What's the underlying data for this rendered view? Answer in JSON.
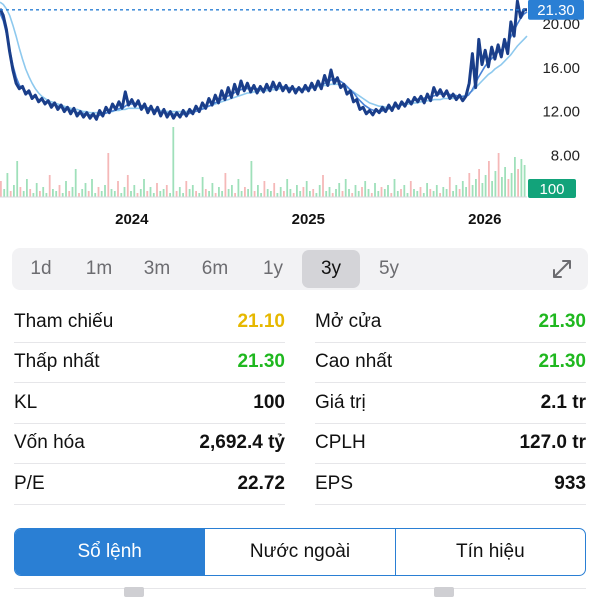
{
  "chart_data": {
    "type": "line",
    "title": "",
    "xlabel": "",
    "ylabel": "",
    "x_tick_labels": [
      "2024",
      "2025",
      "2026"
    ],
    "y_tick_labels": [
      "20.00",
      "16.00",
      "12.00",
      "8.00"
    ],
    "y_ticks": [
      20,
      16,
      12,
      8
    ],
    "ylim": [
      4.2,
      22.2
    ],
    "current_price_label": "21.30",
    "current_price": 21.3,
    "volume_label": "100",
    "grid": false,
    "series": [
      {
        "role": "price",
        "color": "#1a3e8a",
        "values": [
          21.4,
          20.8,
          19.5,
          17.5,
          15.8,
          14.6,
          14.1,
          14.3,
          13.6,
          13.9,
          13.2,
          13.5,
          12.9,
          13.2,
          12.7,
          13.0,
          12.4,
          12.8,
          12.2,
          12.6,
          12.0,
          12.4,
          11.8,
          12.3,
          11.6,
          12.0,
          11.5,
          11.9,
          11.4,
          11.8,
          11.3,
          12.1,
          11.6,
          12.4,
          11.9,
          12.7,
          12.2,
          12.9,
          12.3,
          13.8,
          12.6,
          13.1,
          12.5,
          13.0,
          12.2,
          12.7,
          11.9,
          12.5,
          11.8,
          12.4,
          11.6,
          12.2,
          11.5,
          12.0,
          11.4,
          11.9,
          11.5,
          12.1,
          11.6,
          12.2,
          11.8,
          12.5,
          12.0,
          12.8,
          12.3,
          13.2,
          12.6,
          13.5,
          12.8,
          13.9,
          13.1,
          14.2,
          13.3,
          14.5,
          13.6,
          14.8,
          13.9,
          14.6,
          13.8,
          14.4,
          13.7,
          14.3,
          13.8,
          14.5,
          13.9,
          14.7,
          14.0,
          14.6,
          13.9,
          14.4,
          13.8,
          14.3,
          13.7,
          14.2,
          13.8,
          14.4,
          13.9,
          14.6,
          14.0,
          14.8,
          14.1,
          15.3,
          14.4,
          15.8,
          14.6,
          15.1,
          14.2,
          14.5,
          13.6,
          13.9,
          12.9,
          13.1,
          12.2,
          12.4,
          11.8,
          12.1,
          11.7,
          12.2,
          11.9,
          12.4,
          12.0,
          12.6,
          12.1,
          12.8,
          12.3,
          12.9,
          12.5,
          13.1,
          12.7,
          13.3,
          12.9,
          13.4,
          12.8,
          13.6,
          13.0,
          14.2,
          13.5,
          14.0,
          13.4,
          13.9,
          13.2,
          13.6,
          13.1,
          13.5,
          13.0,
          13.4,
          14.6,
          17.3,
          14.2,
          18.6,
          16.3,
          17.6,
          16.1,
          17.9,
          16.8,
          18.1,
          17.0,
          18.6,
          17.3,
          20.2,
          18.9,
          22.1,
          20.6,
          21.3,
          21.3
        ]
      },
      {
        "role": "moving-average-short",
        "color": "#4a82d6",
        "values": [
          21.0,
          20.3,
          19.1,
          17.6,
          16.2,
          15.1,
          14.4,
          14.1,
          13.8,
          13.6,
          13.4,
          13.3,
          13.1,
          13.0,
          12.9,
          12.8,
          12.7,
          12.6,
          12.5,
          12.4,
          12.3,
          12.2,
          12.1,
          12.0,
          11.9,
          11.9,
          11.8,
          11.7,
          11.7,
          11.6,
          11.6,
          11.7,
          11.8,
          11.9,
          12.0,
          12.1,
          12.2,
          12.3,
          12.4,
          12.6,
          12.7,
          12.7,
          12.7,
          12.6,
          12.5,
          12.4,
          12.3,
          12.2,
          12.1,
          12.0,
          11.9,
          11.9,
          11.8,
          11.8,
          11.7,
          11.7,
          11.7,
          11.8,
          11.8,
          11.9,
          12.0,
          12.1,
          12.2,
          12.3,
          12.5,
          12.6,
          12.8,
          12.9,
          13.1,
          13.3,
          13.4,
          13.6,
          13.7,
          13.9,
          14.0,
          14.1,
          14.1,
          14.2,
          14.1,
          14.1,
          14.1,
          14.1,
          14.1,
          14.2,
          14.2,
          14.3,
          14.3,
          14.3,
          14.2,
          14.2,
          14.1,
          14.1,
          14.0,
          14.0,
          14.0,
          14.1,
          14.2,
          14.3,
          14.4,
          14.5,
          14.6,
          14.8,
          14.9,
          15.0,
          14.9,
          14.7,
          14.5,
          14.2,
          13.9,
          13.6,
          13.2,
          12.9,
          12.6,
          12.4,
          12.2,
          12.1,
          12.0,
          12.0,
          12.1,
          12.2,
          12.3,
          12.4,
          12.5,
          12.6,
          12.7,
          12.8,
          12.9,
          13.0,
          13.1,
          13.2,
          13.2,
          13.3,
          13.3,
          13.4,
          13.5,
          13.6,
          13.6,
          13.6,
          13.6,
          13.5,
          13.5,
          13.4,
          13.4,
          13.4,
          13.5,
          13.9,
          14.5,
          15.1,
          15.6,
          16.1,
          16.5,
          16.8,
          17.1,
          17.4,
          17.6,
          17.9,
          18.3,
          18.8,
          19.4,
          20.0,
          20.5,
          20.9,
          21.1
        ]
      },
      {
        "role": "moving-average-long",
        "color": "#8ec9ee",
        "values": [
          22.0,
          21.8,
          21.4,
          20.8,
          19.9,
          18.9,
          17.8,
          16.8,
          15.9,
          15.2,
          14.6,
          14.1,
          13.7,
          13.4,
          13.2,
          13.0,
          12.9,
          12.8,
          12.7,
          12.6,
          12.5,
          12.4,
          12.3,
          12.2,
          12.2,
          12.1,
          12.0,
          12.0,
          11.9,
          11.9,
          11.9,
          11.9,
          11.9,
          11.9,
          12.0,
          12.0,
          12.1,
          12.1,
          12.2,
          12.2,
          12.3,
          12.3,
          12.3,
          12.3,
          12.3,
          12.3,
          12.2,
          12.2,
          12.2,
          12.1,
          12.1,
          12.1,
          12.0,
          12.0,
          12.0,
          12.0,
          12.0,
          12.0,
          12.0,
          12.1,
          12.1,
          12.2,
          12.2,
          12.3,
          12.4,
          12.5,
          12.6,
          12.7,
          12.8,
          12.9,
          13.0,
          13.1,
          13.2,
          13.3,
          13.4,
          13.5,
          13.6,
          13.7,
          13.7,
          13.8,
          13.8,
          13.9,
          13.9,
          13.9,
          14.0,
          14.0,
          14.0,
          14.1,
          14.1,
          14.1,
          14.1,
          14.1,
          14.1,
          14.1,
          14.1,
          14.1,
          14.2,
          14.2,
          14.2,
          14.3,
          14.3,
          14.4,
          14.4,
          14.5,
          14.5,
          14.5,
          14.4,
          14.3,
          14.2,
          14.0,
          13.8,
          13.6,
          13.4,
          13.2,
          13.0,
          12.8,
          12.7,
          12.6,
          12.5,
          12.5,
          12.4,
          12.4,
          12.4,
          12.5,
          12.5,
          12.6,
          12.6,
          12.7,
          12.7,
          12.8,
          12.8,
          12.9,
          12.9,
          13.0,
          13.0,
          13.1,
          13.1,
          13.1,
          13.2,
          13.2,
          13.2,
          13.2,
          13.3,
          13.3,
          13.4,
          13.5,
          13.7,
          13.9,
          14.2,
          14.5,
          14.8,
          15.1,
          15.4,
          15.6,
          15.9,
          16.1,
          16.3,
          16.6,
          16.9,
          17.2,
          17.6,
          18.0,
          18.3,
          18.6,
          18.9
        ]
      }
    ],
    "volume": {
      "values": [
        8,
        4,
        12,
        3,
        6,
        18,
        5,
        3,
        9,
        4,
        2,
        7,
        3,
        5,
        2,
        11,
        4,
        3,
        6,
        2,
        8,
        3,
        5,
        14,
        2,
        4,
        7,
        3,
        9,
        2,
        5,
        3,
        6,
        22,
        4,
        3,
        8,
        2,
        5,
        11,
        3,
        6,
        2,
        4,
        9,
        3,
        5,
        2,
        7,
        3,
        4,
        6,
        2,
        35,
        3,
        5,
        2,
        8,
        4,
        6,
        3,
        2,
        10,
        4,
        3,
        7,
        2,
        5,
        3,
        12,
        4,
        6,
        2,
        9,
        3,
        5,
        4,
        18,
        3,
        6,
        2,
        8,
        4,
        3,
        7,
        2,
        5,
        3,
        9,
        4,
        2,
        6,
        3,
        5,
        8,
        3,
        4,
        2,
        6,
        11,
        3,
        5,
        2,
        4,
        7,
        3,
        9,
        4,
        2,
        6,
        3,
        5,
        8,
        4,
        2,
        7,
        3,
        5,
        4,
        6,
        2,
        9,
        3,
        4,
        6,
        2,
        8,
        4,
        3,
        5,
        2,
        7,
        4,
        3,
        6,
        2,
        5,
        4,
        10,
        3,
        6,
        4,
        8,
        5,
        12,
        6,
        9,
        14,
        7,
        11,
        18,
        8,
        13,
        22,
        10,
        15,
        9,
        12,
        20,
        14,
        19,
        16
      ],
      "colors": [
        "#7fd6a3",
        "#f2a0a0"
      ]
    }
  },
  "range_tabs": {
    "items": [
      {
        "label": "1d"
      },
      {
        "label": "1m"
      },
      {
        "label": "3m"
      },
      {
        "label": "6m"
      },
      {
        "label": "1y"
      },
      {
        "label": "3y"
      },
      {
        "label": "5y"
      }
    ],
    "active_index": 5,
    "expand_icon": "expand-diagonal-icon"
  },
  "stats": {
    "rows": [
      {
        "left": {
          "label": "Tham chiếu",
          "value": "21.10",
          "tone": "yellow"
        },
        "right": {
          "label": "Mở cửa",
          "value": "21.30",
          "tone": "green"
        }
      },
      {
        "left": {
          "label": "Thấp nhất",
          "value": "21.30",
          "tone": "green"
        },
        "right": {
          "label": "Cao nhất",
          "value": "21.30",
          "tone": "green"
        }
      },
      {
        "left": {
          "label": "KL",
          "value": "100",
          "tone": "default"
        },
        "right": {
          "label": "Giá trị",
          "value": "2.1 tr",
          "tone": "default"
        }
      },
      {
        "left": {
          "label": "Vốn hóa",
          "value": "2,692.4 tỷ",
          "tone": "default"
        },
        "right": {
          "label": "CPLH",
          "value": "127.0 tr",
          "tone": "default"
        }
      },
      {
        "left": {
          "label": "P/E",
          "value": "22.72",
          "tone": "default"
        },
        "right": {
          "label": "EPS",
          "value": "933",
          "tone": "default"
        }
      }
    ]
  },
  "segments": {
    "items": [
      {
        "label": "Sổ lệnh"
      },
      {
        "label": "Nước ngoài"
      },
      {
        "label": "Tín hiệu"
      }
    ],
    "active_index": 0
  },
  "colors": {
    "accent": "#2a7fd4",
    "up": "#1fb81f",
    "reference": "#e6b800",
    "price_badge": "#2a7fd4",
    "volume_badge": "#12a37a"
  }
}
